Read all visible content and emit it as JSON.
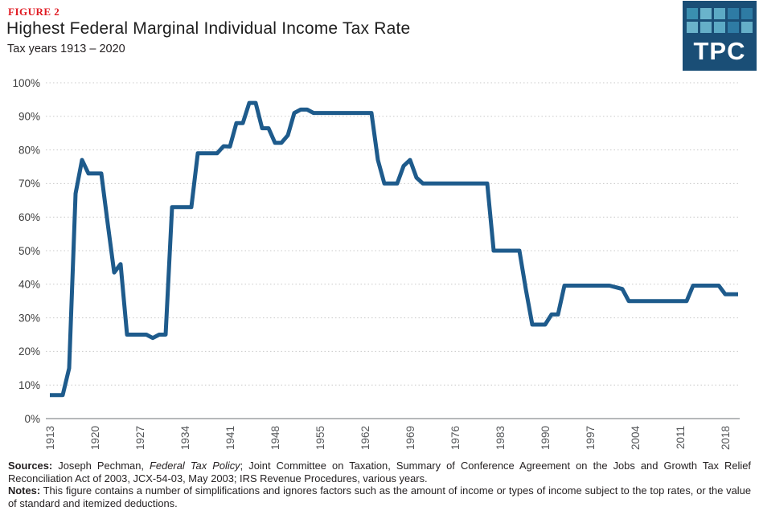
{
  "figure_label": "FIGURE 2",
  "title": "Highest Federal Marginal Individual Income Tax Rate",
  "subtitle": "Tax years 1913 – 2020",
  "colors": {
    "figure_label": "#e01a22",
    "line": "#1e5b8c",
    "grid": "#c9c9c9",
    "axis": "#8a8d90",
    "logo_bg": "#1a4e76"
  },
  "logo": {
    "text": "TPC",
    "bg": "#1a4e76",
    "squares": [
      "#3a8fb0",
      "#6ab3cb",
      "#5caac5",
      "#2e7ba4",
      "#2e7ba4",
      "#6ab3cb",
      "#65afc8",
      "#5caac5",
      "#2e7ba4",
      "#65afc8"
    ]
  },
  "chart_data": {
    "type": "line",
    "title": "Highest Federal Marginal Individual Income Tax Rate",
    "subtitle": "Tax years 1913 – 2020",
    "xlabel": "",
    "ylabel": "",
    "xlim": [
      1913,
      2020
    ],
    "ylim": [
      0,
      100
    ],
    "grid": "horizontal-dotted",
    "legend": "none",
    "line_color": "#1e5b8c",
    "xticks": [
      1913,
      1920,
      1927,
      1934,
      1941,
      1948,
      1955,
      1962,
      1969,
      1976,
      1983,
      1990,
      1997,
      2004,
      2011,
      2018
    ],
    "yticks": [
      0,
      10,
      20,
      30,
      40,
      50,
      60,
      70,
      80,
      90,
      100
    ],
    "ytick_labels": [
      "0%",
      "10%",
      "20%",
      "30%",
      "40%",
      "50%",
      "60%",
      "70%",
      "80%",
      "90%",
      "100%"
    ],
    "x": [
      1913,
      1914,
      1915,
      1916,
      1917,
      1918,
      1919,
      1920,
      1921,
      1922,
      1923,
      1924,
      1925,
      1926,
      1927,
      1928,
      1929,
      1930,
      1931,
      1932,
      1933,
      1934,
      1935,
      1936,
      1937,
      1938,
      1939,
      1940,
      1941,
      1942,
      1943,
      1944,
      1945,
      1946,
      1947,
      1948,
      1949,
      1950,
      1951,
      1952,
      1953,
      1954,
      1955,
      1956,
      1957,
      1958,
      1959,
      1960,
      1961,
      1962,
      1963,
      1964,
      1965,
      1966,
      1967,
      1968,
      1969,
      1970,
      1971,
      1972,
      1973,
      1974,
      1975,
      1976,
      1977,
      1978,
      1979,
      1980,
      1981,
      1982,
      1983,
      1984,
      1985,
      1986,
      1987,
      1988,
      1989,
      1990,
      1991,
      1992,
      1993,
      1994,
      1995,
      1996,
      1997,
      1998,
      1999,
      2000,
      2001,
      2002,
      2003,
      2004,
      2005,
      2006,
      2007,
      2008,
      2009,
      2010,
      2011,
      2012,
      2013,
      2014,
      2015,
      2016,
      2017,
      2018,
      2019,
      2020
    ],
    "series": [
      {
        "name": "Highest federal marginal individual income tax rate (%)",
        "values": [
          7,
          7,
          7,
          15,
          67,
          77,
          73,
          73,
          73,
          58,
          43.5,
          46,
          25,
          25,
          25,
          25,
          24,
          25,
          25,
          63,
          63,
          63,
          63,
          79,
          79,
          79,
          79,
          81.1,
          81,
          88,
          88,
          94,
          94,
          86.45,
          86.45,
          82.13,
          82.13,
          84.36,
          91,
          92,
          92,
          91,
          91,
          91,
          91,
          91,
          91,
          91,
          91,
          91,
          91,
          77,
          70,
          70,
          70,
          75.25,
          77,
          71.75,
          70,
          70,
          70,
          70,
          70,
          70,
          70,
          70,
          70,
          70,
          70,
          50,
          50,
          50,
          50,
          50,
          38.5,
          28,
          28,
          28,
          31,
          31,
          39.6,
          39.6,
          39.6,
          39.6,
          39.6,
          39.6,
          39.6,
          39.6,
          39.1,
          38.6,
          35,
          35,
          35,
          35,
          35,
          35,
          35,
          35,
          35,
          35,
          39.6,
          39.6,
          39.6,
          39.6,
          39.6,
          37,
          37,
          37
        ]
      }
    ]
  },
  "footer": {
    "sources_label": "Sources:",
    "sources_text_1": " Joseph Pechman, ",
    "sources_italic": "Federal Tax Policy",
    "sources_text_2": "; Joint Committee on Taxation, Summary of Conference Agreement on the Jobs and Growth Tax Relief Reconciliation Act of 2003, JCX-54-03, May 2003; IRS Revenue Procedures, various years.",
    "notes_label": "Notes:",
    "notes_text": " This figure contains a number of simplifications and ignores factors such as the amount of income or types of income subject to the top rates, or the value of standard and itemized deductions."
  }
}
